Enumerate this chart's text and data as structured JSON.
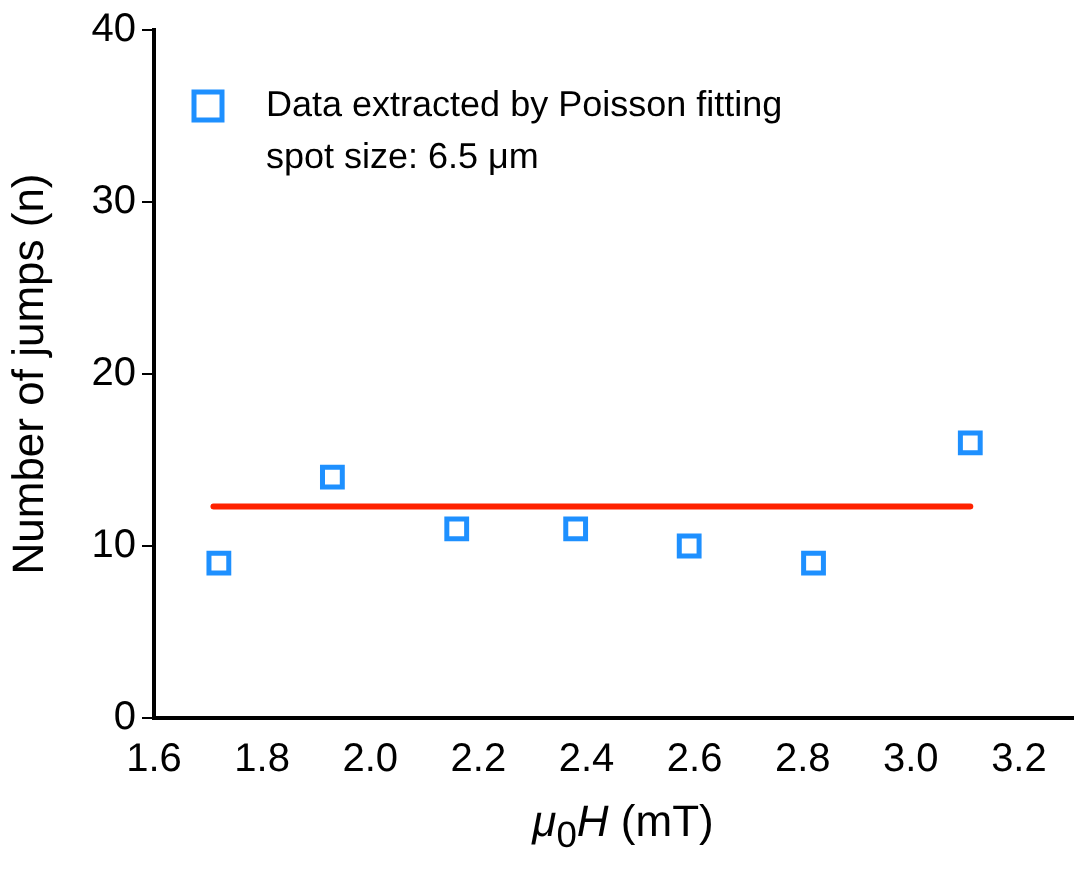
{
  "chart_data": {
    "type": "scatter",
    "xlabel": "μ$_{0}$H (mT)",
    "ylabel": "Number of jumps (n)",
    "xlim": [
      1.6,
      3.3
    ],
    "xticks": [
      1.6,
      1.8,
      {
        "value": 2,
        "label": "2.0"
      },
      2.2,
      2.4,
      2.6,
      2.8,
      {
        "value": 3,
        "label": "3.0"
      },
      3.2
    ],
    "ylim": [
      0,
      40
    ],
    "yticks": [
      0,
      10,
      20,
      30,
      40
    ],
    "grid": false,
    "legend": "top left",
    "marker": "square",
    "annotations": [
      "spot size: 6.5 μm"
    ],
    "series": [
      {
        "name": "Data extracted by Poisson fitting",
        "color": "#1e90ff",
        "x": [
          1.72,
          1.93,
          2.16,
          2.38,
          2.59,
          2.82,
          3.11
        ],
        "values": [
          9,
          14,
          11,
          11,
          10,
          9,
          16
        ]
      },
      {
        "type": "line",
        "color": "#ff2200",
        "x": [
          1.71,
          3.11
        ],
        "values": [
          12.3,
          12.3
        ],
        "marker": "none"
      }
    ]
  }
}
